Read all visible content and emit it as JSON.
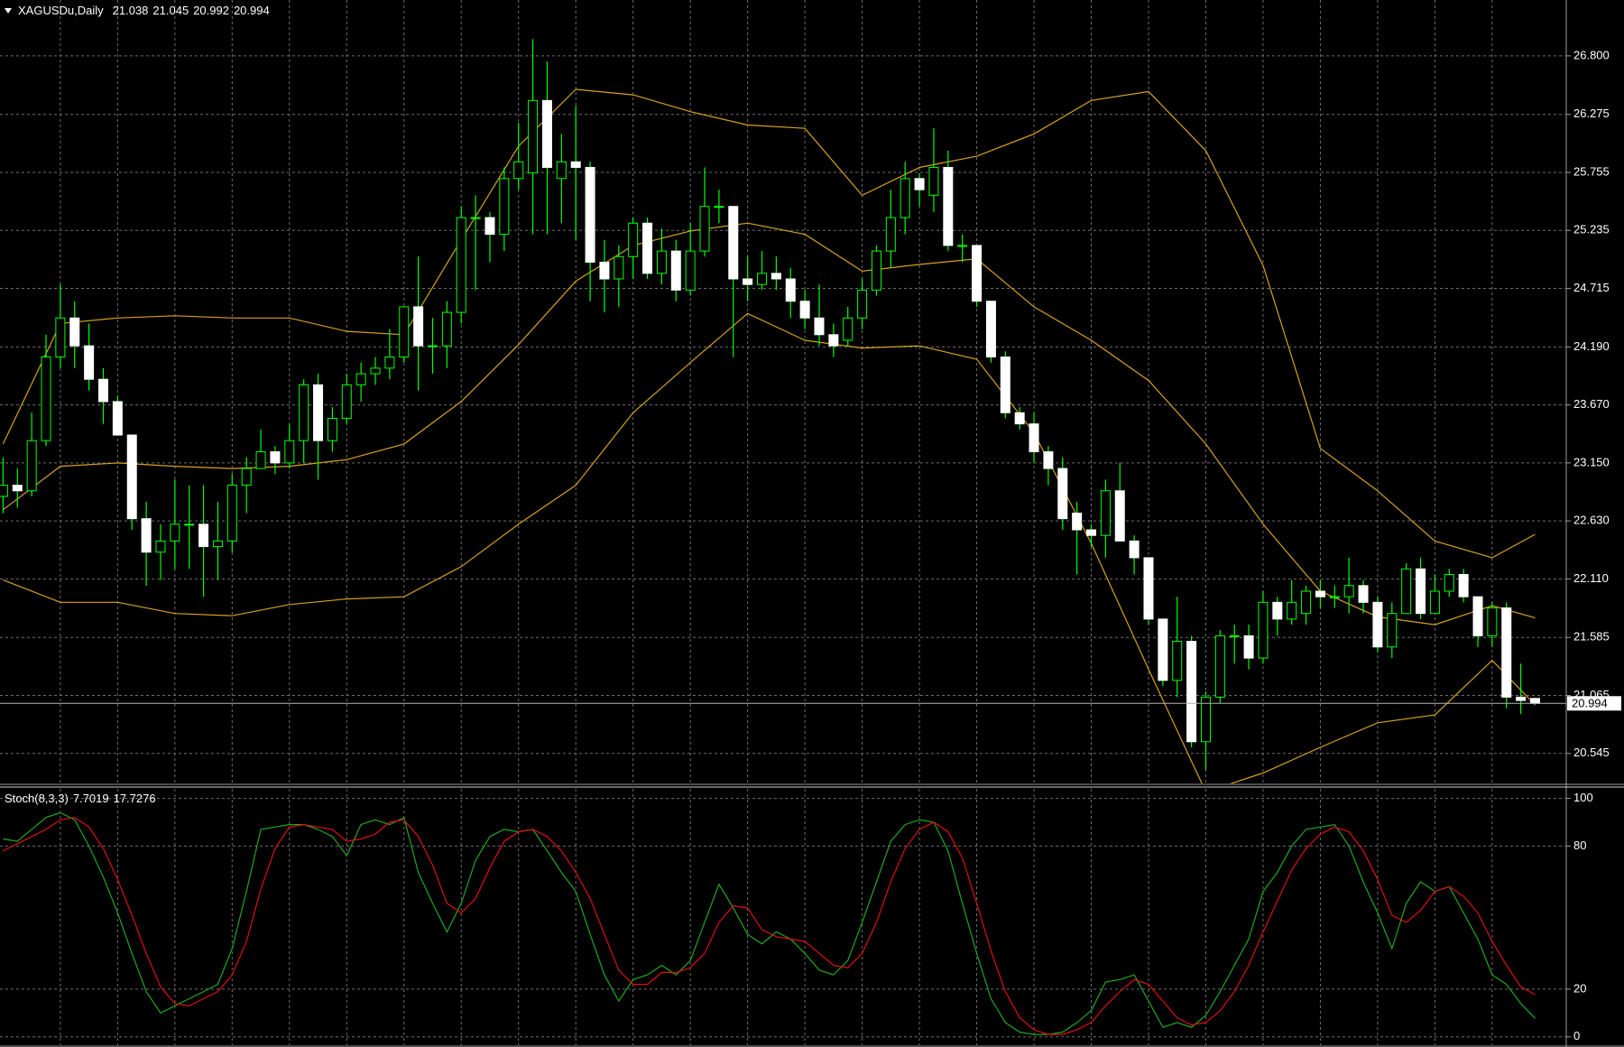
{
  "chart_data": [
    {
      "type": "candlestick",
      "title": "XAGUSDu,Daily",
      "open": [
        22.85,
        22.95,
        22.9,
        23.35,
        24.1,
        24.45,
        24.2,
        23.9,
        23.7,
        23.4,
        22.65,
        22.35,
        22.45,
        22.6,
        22.6,
        22.4,
        22.45,
        22.95,
        23.1,
        23.25,
        23.15,
        23.35,
        23.85,
        23.35,
        23.55,
        23.85,
        23.95,
        24.0,
        24.1,
        24.55,
        24.2,
        24.2,
        24.5,
        25.35,
        25.35,
        25.2,
        25.7,
        25.75,
        26.4,
        25.7,
        25.85,
        25.8,
        24.95,
        24.8,
        25.0,
        25.3,
        24.85,
        25.05,
        24.7,
        25.05,
        25.45,
        25.45,
        24.8,
        24.75,
        24.85,
        24.8,
        24.6,
        24.45,
        24.3,
        24.25,
        24.45,
        24.7,
        25.05,
        25.35,
        25.7,
        25.55,
        25.8,
        25.1,
        25.1,
        24.6,
        24.1,
        23.6,
        23.5,
        23.25,
        23.1,
        22.7,
        22.55,
        22.5,
        22.9,
        22.45,
        22.3,
        21.75,
        21.2,
        21.55,
        20.65,
        21.05,
        21.6,
        21.6,
        21.4,
        21.9,
        21.75,
        21.8,
        22.0,
        21.95,
        21.95,
        22.05,
        21.9,
        21.5,
        21.8,
        22.2,
        21.8,
        22.0,
        22.15,
        21.95,
        21.6,
        21.85,
        21.05,
        21.038
      ],
      "high": [
        23.2,
        23.1,
        23.6,
        24.3,
        24.75,
        24.6,
        24.4,
        24.0,
        23.75,
        23.4,
        22.8,
        22.6,
        23.0,
        22.95,
        22.95,
        22.8,
        23.05,
        23.2,
        23.45,
        23.3,
        23.5,
        23.9,
        23.95,
        23.65,
        23.95,
        24.05,
        24.1,
        24.35,
        24.55,
        25.0,
        24.45,
        24.6,
        25.45,
        25.55,
        25.4,
        25.8,
        26.2,
        26.95,
        26.75,
        26.1,
        26.35,
        25.85,
        25.15,
        25.1,
        25.35,
        25.35,
        25.25,
        25.15,
        25.3,
        25.8,
        25.6,
        25.45,
        25.0,
        25.05,
        25.0,
        24.9,
        24.7,
        24.75,
        24.4,
        24.55,
        24.8,
        25.1,
        25.6,
        25.85,
        25.75,
        26.15,
        25.95,
        25.2,
        25.1,
        24.6,
        24.15,
        23.65,
        23.6,
        23.3,
        23.2,
        22.8,
        22.6,
        23.0,
        23.15,
        22.5,
        22.3,
        21.75,
        21.95,
        21.6,
        21.1,
        21.65,
        21.7,
        21.7,
        22.0,
        21.95,
        22.1,
        22.05,
        22.1,
        22.05,
        22.3,
        22.1,
        21.95,
        21.9,
        22.25,
        22.3,
        22.15,
        22.2,
        22.2,
        21.95,
        21.9,
        21.9,
        21.35,
        21.045
      ],
      "low": [
        22.7,
        22.75,
        22.85,
        23.3,
        24.0,
        24.0,
        23.8,
        23.5,
        23.4,
        22.55,
        22.05,
        22.1,
        22.2,
        22.2,
        21.95,
        22.1,
        22.35,
        22.7,
        23.1,
        23.05,
        23.1,
        23.15,
        23.0,
        23.25,
        23.5,
        23.7,
        23.85,
        23.9,
        24.05,
        23.8,
        23.95,
        24.0,
        24.4,
        24.7,
        24.95,
        25.05,
        25.6,
        25.2,
        25.2,
        25.3,
        25.15,
        24.6,
        24.5,
        24.55,
        24.8,
        24.8,
        24.75,
        24.6,
        24.65,
        25.0,
        25.3,
        24.1,
        24.6,
        24.7,
        24.7,
        24.45,
        24.35,
        24.2,
        24.1,
        24.2,
        24.35,
        24.65,
        24.9,
        25.2,
        25.45,
        25.4,
        25.05,
        24.95,
        24.55,
        24.05,
        23.55,
        23.45,
        23.15,
        22.95,
        22.55,
        22.15,
        22.4,
        22.3,
        22.45,
        22.15,
        21.7,
        21.15,
        21.05,
        20.6,
        20.4,
        21.0,
        21.35,
        21.3,
        21.35,
        21.6,
        21.7,
        21.7,
        21.85,
        21.85,
        21.8,
        21.8,
        21.45,
        21.4,
        21.8,
        21.75,
        21.8,
        21.95,
        21.9,
        21.5,
        21.5,
        20.95,
        20.9,
        20.992
      ],
      "close": [
        22.95,
        22.9,
        23.35,
        24.1,
        24.45,
        24.2,
        23.9,
        23.7,
        23.4,
        22.65,
        22.35,
        22.45,
        22.6,
        22.6,
        22.4,
        22.45,
        22.95,
        23.1,
        23.25,
        23.15,
        23.35,
        23.85,
        23.35,
        23.55,
        23.85,
        23.95,
        24.0,
        24.1,
        24.55,
        24.2,
        24.2,
        24.5,
        25.35,
        25.35,
        25.2,
        25.7,
        25.85,
        26.4,
        25.8,
        25.85,
        25.8,
        24.95,
        24.8,
        25.0,
        25.3,
        24.85,
        25.05,
        24.7,
        25.05,
        25.45,
        25.45,
        24.8,
        24.75,
        24.85,
        24.8,
        24.6,
        24.45,
        24.3,
        24.2,
        24.45,
        24.7,
        25.05,
        25.35,
        25.7,
        25.6,
        25.8,
        25.1,
        25.1,
        24.6,
        24.1,
        23.6,
        23.5,
        23.25,
        23.1,
        22.65,
        22.55,
        22.5,
        22.9,
        22.45,
        22.3,
        21.75,
        21.2,
        21.55,
        20.65,
        21.05,
        21.6,
        21.6,
        21.4,
        21.9,
        21.75,
        21.9,
        22.0,
        21.95,
        21.95,
        22.05,
        21.9,
        21.5,
        21.8,
        22.2,
        21.8,
        22.0,
        22.15,
        21.95,
        21.6,
        21.85,
        21.05,
        21.02,
        20.994
      ],
      "bull_color": "#000000",
      "bear_color": "#ffffff",
      "wick_color": "#00ff00",
      "price_line_color": "#b4b4b4",
      "series": [
        {
          "color": "#d6a21e",
          "x": [
            0,
            4,
            8,
            12,
            16,
            20,
            24,
            28,
            32,
            36,
            40,
            44,
            48,
            52,
            56,
            60,
            64,
            68,
            72,
            76,
            80,
            84,
            88,
            92,
            96,
            100,
            104,
            107
          ],
          "values": [
            23.32,
            24.4,
            24.45,
            24.47,
            24.45,
            24.45,
            24.33,
            24.3,
            25.15,
            25.99,
            26.5,
            26.45,
            26.3,
            26.18,
            26.15,
            25.55,
            25.8,
            25.9,
            26.1,
            26.4,
            26.48,
            25.95,
            24.92,
            23.28,
            22.9,
            22.45,
            22.3,
            22.51
          ]
        },
        {
          "color": "#d6a21e",
          "x": [
            0,
            4,
            8,
            12,
            16,
            20,
            24,
            28,
            32,
            36,
            40,
            44,
            48,
            52,
            56,
            60,
            64,
            68,
            72,
            76,
            80,
            84,
            88,
            92,
            96,
            100,
            104,
            107
          ],
          "values": [
            22.73,
            23.12,
            23.15,
            23.12,
            23.1,
            23.12,
            23.18,
            23.32,
            23.7,
            24.21,
            24.78,
            25.1,
            25.23,
            25.3,
            25.2,
            24.87,
            24.93,
            24.98,
            24.55,
            24.25,
            23.89,
            23.32,
            22.6,
            22.0,
            21.77,
            21.7,
            21.87,
            21.76
          ]
        },
        {
          "color": "#d6a21e",
          "x": [
            0,
            4,
            8,
            12,
            16,
            20,
            24,
            28,
            32,
            36,
            40,
            44,
            48,
            52,
            56,
            60,
            64,
            68,
            72,
            76,
            80,
            84,
            88,
            92,
            96,
            100,
            104,
            107
          ],
          "values": [
            22.1,
            21.9,
            21.9,
            21.8,
            21.78,
            21.88,
            21.93,
            21.95,
            22.22,
            22.6,
            22.95,
            23.6,
            24.05,
            24.49,
            24.25,
            24.18,
            24.2,
            24.08,
            23.42,
            22.43,
            21.3,
            20.2,
            20.37,
            20.6,
            20.82,
            20.89,
            21.38,
            20.98
          ]
        }
      ],
      "ylim": [
        20.276,
        27.301
      ],
      "yticks": [
        {
          "value": 26.8,
          "label": "26.800"
        },
        26.275,
        25.755,
        25.235,
        24.715,
        {
          "value": 24.19,
          "label": "24.190"
        },
        {
          "value": 23.67,
          "label": "23.670"
        },
        {
          "value": 23.15,
          "label": "23.150"
        },
        {
          "value": 22.63,
          "label": "22.630"
        },
        {
          "value": 22.11,
          "label": "22.110"
        },
        21.585,
        21.065,
        20.545
      ],
      "grid": true
    },
    {
      "type": "line",
      "title": "Stoch(8,3,3)",
      "series": [
        {
          "color": "#1fa81f",
          "values": [
            83,
            82,
            87,
            92,
            94,
            91,
            80,
            67,
            52,
            35,
            19,
            10,
            13,
            16,
            19,
            22,
            37,
            61,
            87,
            88,
            89,
            89,
            87,
            84,
            76,
            89,
            91,
            89,
            92,
            69,
            56,
            44,
            56,
            74,
            84,
            87,
            86,
            87,
            78,
            69,
            61,
            43,
            26,
            15,
            24,
            26,
            30,
            26,
            32,
            48,
            64,
            54,
            43,
            39,
            44,
            41,
            35,
            28,
            26,
            32,
            48,
            65,
            82,
            89,
            91,
            90,
            78,
            56,
            35,
            16,
            6,
            2,
            1,
            1,
            2,
            6,
            11,
            23,
            24,
            26,
            15,
            4,
            6,
            4,
            9,
            19,
            30,
            41,
            61,
            69,
            80,
            87,
            88,
            89,
            80,
            65,
            52,
            37,
            56,
            65,
            61,
            63,
            52,
            41,
            26,
            22,
            14,
            7.7019
          ]
        },
        {
          "color": "#e01010",
          "values": [
            78,
            81,
            84,
            87,
            91,
            92,
            88,
            79,
            66,
            51,
            35,
            21,
            14,
            13,
            16,
            19,
            26,
            40,
            62,
            79,
            88,
            89,
            88,
            87,
            82,
            83,
            85,
            90,
            91,
            84,
            72,
            56,
            52,
            58,
            71,
            82,
            86,
            87,
            84,
            78,
            69,
            58,
            43,
            28,
            22,
            22,
            27,
            27,
            29,
            35,
            48,
            55,
            54,
            45,
            42,
            41,
            40,
            35,
            30,
            29,
            35,
            48,
            65,
            79,
            87,
            90,
            86,
            75,
            56,
            36,
            19,
            8,
            3,
            1,
            1,
            3,
            6,
            13,
            19,
            24,
            22,
            15,
            8,
            5,
            6,
            11,
            19,
            30,
            44,
            57,
            70,
            79,
            85,
            88,
            86,
            78,
            66,
            51,
            48,
            53,
            61,
            63,
            59,
            52,
            40,
            30,
            21,
            17.7276
          ]
        }
      ],
      "ylim": [
        -3.5,
        104
      ],
      "yticks": [
        100,
        80,
        20,
        0
      ],
      "grid": true
    }
  ]
}
